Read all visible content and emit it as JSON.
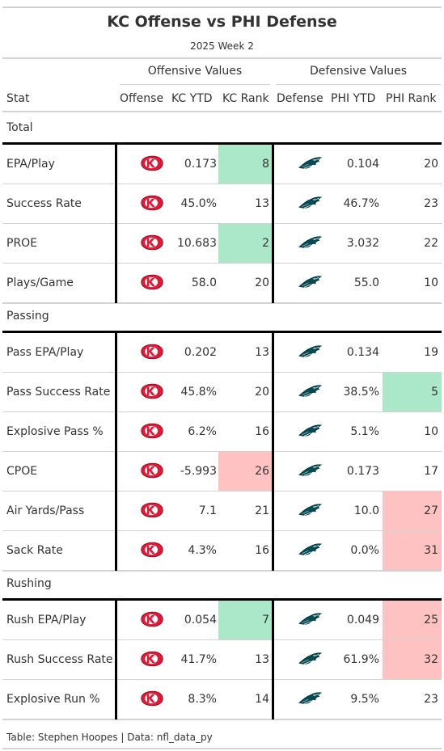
{
  "title": "KC Offense vs PHI Defense",
  "subtitle": "2025 Week 2",
  "spanners": {
    "offense": "Offensive Values",
    "defense": "Defensive Values"
  },
  "columns": {
    "stat": "Stat",
    "offense": "Offense",
    "kc_ytd": "KC YTD",
    "kc_rank": "KC Rank",
    "defense": "Defense",
    "phi_ytd": "PHI YTD",
    "phi_rank": "PHI Rank"
  },
  "colors": {
    "good": "#abe8c9",
    "bad": "#ffc2c2",
    "chiefs_red": "#e31837",
    "eagles_green": "#004c54"
  },
  "groups": [
    {
      "label": "Total",
      "rows": [
        {
          "stat": "EPA/Play",
          "kc_ytd": "0.173",
          "kc_rank": "8",
          "kc_hl": "good",
          "phi_ytd": "0.104",
          "phi_rank": "20",
          "phi_hl": ""
        },
        {
          "stat": "Success Rate",
          "kc_ytd": "45.0%",
          "kc_rank": "13",
          "kc_hl": "",
          "phi_ytd": "46.7%",
          "phi_rank": "23",
          "phi_hl": ""
        },
        {
          "stat": "PROE",
          "kc_ytd": "10.683",
          "kc_rank": "2",
          "kc_hl": "good",
          "phi_ytd": "3.032",
          "phi_rank": "22",
          "phi_hl": ""
        },
        {
          "stat": "Plays/Game",
          "kc_ytd": "58.0",
          "kc_rank": "20",
          "kc_hl": "",
          "phi_ytd": "55.0",
          "phi_rank": "10",
          "phi_hl": ""
        }
      ]
    },
    {
      "label": "Passing",
      "rows": [
        {
          "stat": "Pass EPA/Play",
          "kc_ytd": "0.202",
          "kc_rank": "13",
          "kc_hl": "",
          "phi_ytd": "0.134",
          "phi_rank": "19",
          "phi_hl": ""
        },
        {
          "stat": "Pass Success Rate",
          "kc_ytd": "45.8%",
          "kc_rank": "20",
          "kc_hl": "",
          "phi_ytd": "38.5%",
          "phi_rank": "5",
          "phi_hl": "good"
        },
        {
          "stat": "Explosive Pass %",
          "kc_ytd": "6.2%",
          "kc_rank": "16",
          "kc_hl": "",
          "phi_ytd": "5.1%",
          "phi_rank": "10",
          "phi_hl": ""
        },
        {
          "stat": "CPOE",
          "kc_ytd": "-5.993",
          "kc_rank": "26",
          "kc_hl": "bad",
          "phi_ytd": "0.173",
          "phi_rank": "17",
          "phi_hl": ""
        },
        {
          "stat": "Air Yards/Pass",
          "kc_ytd": "7.1",
          "kc_rank": "21",
          "kc_hl": "",
          "phi_ytd": "10.0",
          "phi_rank": "27",
          "phi_hl": "bad"
        },
        {
          "stat": "Sack Rate",
          "kc_ytd": "4.3%",
          "kc_rank": "16",
          "kc_hl": "",
          "phi_ytd": "0.0%",
          "phi_rank": "31",
          "phi_hl": "bad"
        }
      ]
    },
    {
      "label": "Rushing",
      "rows": [
        {
          "stat": "Rush EPA/Play",
          "kc_ytd": "0.054",
          "kc_rank": "7",
          "kc_hl": "good",
          "phi_ytd": "0.049",
          "phi_rank": "25",
          "phi_hl": "bad"
        },
        {
          "stat": "Rush Success Rate",
          "kc_ytd": "41.7%",
          "kc_rank": "13",
          "kc_hl": "",
          "phi_ytd": "61.9%",
          "phi_rank": "32",
          "phi_hl": "bad"
        },
        {
          "stat": "Explosive Run %",
          "kc_ytd": "8.3%",
          "kc_rank": "14",
          "kc_hl": "",
          "phi_ytd": "9.5%",
          "phi_rank": "23",
          "phi_hl": ""
        }
      ]
    }
  ],
  "icons": {
    "offense": "chiefs-logo-icon",
    "defense": "eagles-logo-icon"
  },
  "footer": "Table: Stephen Hoopes | Data: nfl_data_py"
}
